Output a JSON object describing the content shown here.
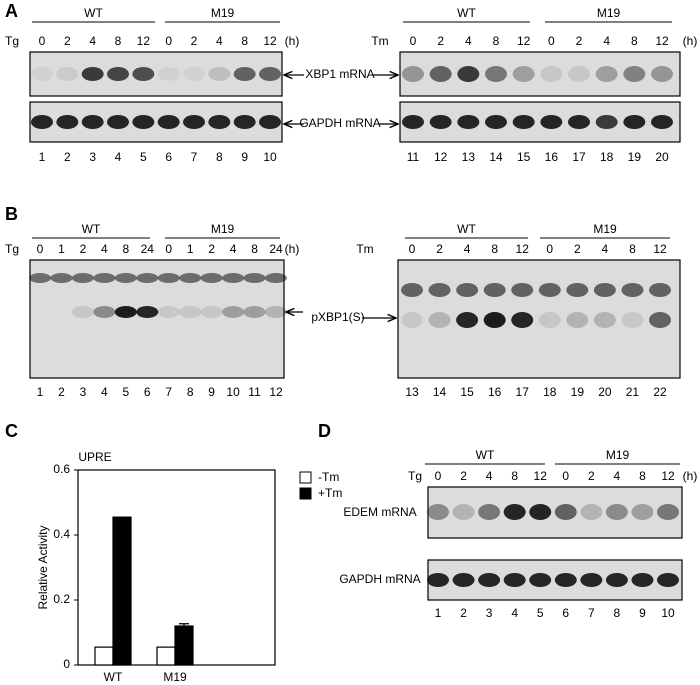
{
  "panels": {
    "A": {
      "label": "A",
      "left": {
        "treatment": "Tg",
        "groups": [
          "WT",
          "M19"
        ],
        "times": [
          "0",
          "2",
          "4",
          "8",
          "12",
          "0",
          "2",
          "4",
          "8",
          "12"
        ],
        "unit": "(h)",
        "lanes": [
          "1",
          "2",
          "3",
          "4",
          "5",
          "6",
          "7",
          "8",
          "9",
          "10"
        ]
      },
      "right": {
        "treatment": "Tm",
        "groups": [
          "WT",
          "M19"
        ],
        "times": [
          "0",
          "2",
          "4",
          "8",
          "12",
          "0",
          "2",
          "4",
          "8",
          "12"
        ],
        "unit": "(h)",
        "lanes": [
          "11",
          "12",
          "13",
          "14",
          "15",
          "16",
          "17",
          "18",
          "19",
          "20"
        ]
      },
      "row_labels": [
        "XBP1 mRNA",
        "GAPDH mRNA"
      ]
    },
    "B": {
      "label": "B",
      "left": {
        "treatment": "Tg",
        "groups": [
          "WT",
          "M19"
        ],
        "times": [
          "0",
          "1",
          "2",
          "4",
          "8",
          "24",
          "0",
          "1",
          "2",
          "4",
          "8",
          "24"
        ],
        "unit": "(h)",
        "lanes": [
          "1",
          "2",
          "3",
          "4",
          "5",
          "6",
          "7",
          "8",
          "9",
          "10",
          "11",
          "12"
        ]
      },
      "right": {
        "treatment": "Tm",
        "groups": [
          "WT",
          "M19"
        ],
        "times": [
          "0",
          "2",
          "4",
          "8",
          "12",
          "0",
          "2",
          "4",
          "8",
          "12"
        ],
        "lanes": [
          "13",
          "14",
          "15",
          "16",
          "17",
          "18",
          "19",
          "20",
          "21",
          "22"
        ]
      },
      "row_label": "pXBP1(S)"
    },
    "C": {
      "label": "C"
    },
    "D": {
      "label": "D",
      "blot": {
        "treatment": "Tg",
        "groups": [
          "WT",
          "M19"
        ],
        "times": [
          "0",
          "2",
          "4",
          "8",
          "12",
          "0",
          "2",
          "4",
          "8",
          "12"
        ],
        "unit": "(h)",
        "lanes": [
          "1",
          "2",
          "3",
          "4",
          "5",
          "6",
          "7",
          "8",
          "9",
          "10"
        ]
      },
      "row_labels": [
        "EDEM mRNA",
        "GAPDH mRNA"
      ]
    }
  },
  "chart_data": {
    "type": "bar",
    "title": "UPRE",
    "y_label": "Relative Activity",
    "categories": [
      "WT",
      "M19"
    ],
    "series": [
      {
        "name": "-Tm",
        "color": "#ffffff",
        "values": [
          0.055,
          0.055
        ]
      },
      {
        "name": "+Tm",
        "color": "#000000",
        "values": [
          0.455,
          0.12
        ],
        "errors": [
          null,
          0.007
        ]
      }
    ],
    "ylim": [
      0,
      0.6
    ],
    "yticks": [
      0,
      0.2,
      0.4,
      0.6
    ]
  }
}
